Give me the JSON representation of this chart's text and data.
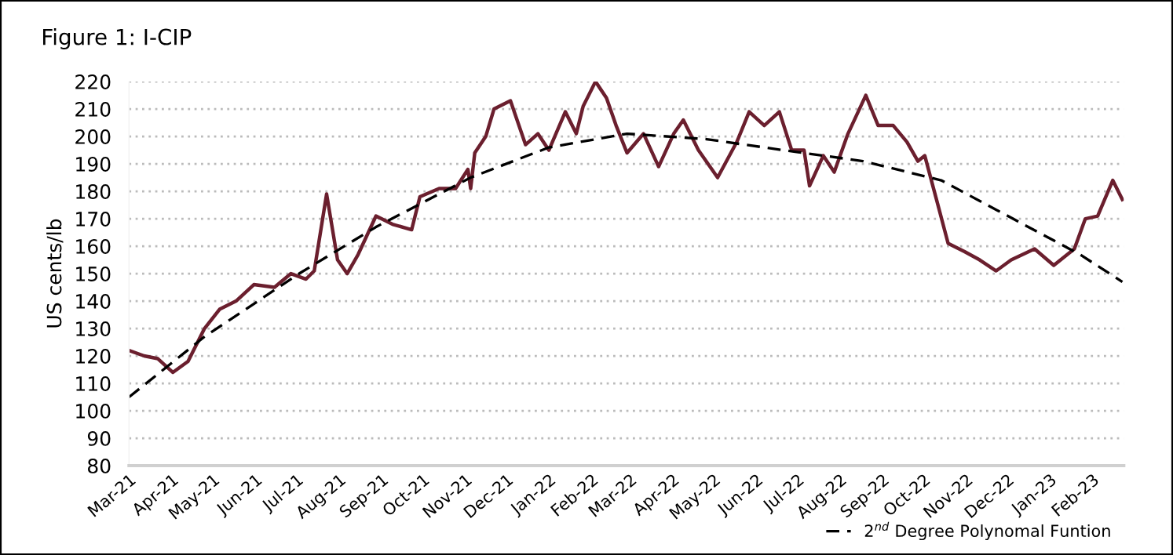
{
  "chart_data": {
    "type": "line",
    "title": "Figure 1: I-CIP",
    "ylabel": "US cents/lb",
    "xlim": [
      "2021-03-01",
      "2023-02-24"
    ],
    "xticks": [
      {
        "value": "2021-03-01",
        "label": "Mar-21"
      },
      {
        "value": "2021-04-01",
        "label": "Apr-21"
      },
      {
        "value": "2021-05-01",
        "label": "May-21"
      },
      {
        "value": "2021-06-01",
        "label": "Jun-21"
      },
      {
        "value": "2021-07-01",
        "label": "Jul-21"
      },
      {
        "value": "2021-08-01",
        "label": "Aug-21"
      },
      {
        "value": "2021-09-01",
        "label": "Sep-21"
      },
      {
        "value": "2021-10-01",
        "label": "Oct-21"
      },
      {
        "value": "2021-11-01",
        "label": "Nov-21"
      },
      {
        "value": "2021-12-01",
        "label": "Dec-21"
      },
      {
        "value": "2022-01-01",
        "label": "Jan-22"
      },
      {
        "value": "2022-02-01",
        "label": "Feb-22"
      },
      {
        "value": "2022-03-01",
        "label": "Mar-22"
      },
      {
        "value": "2022-04-01",
        "label": "Apr-22"
      },
      {
        "value": "2022-05-01",
        "label": "May-22"
      },
      {
        "value": "2022-06-01",
        "label": "Jun-22"
      },
      {
        "value": "2022-07-01",
        "label": "Jul-22"
      },
      {
        "value": "2022-08-01",
        "label": "Aug-22"
      },
      {
        "value": "2022-09-01",
        "label": "Sep-22"
      },
      {
        "value": "2022-10-01",
        "label": "Oct-22"
      },
      {
        "value": "2022-11-01",
        "label": "Nov-22"
      },
      {
        "value": "2022-12-01",
        "label": "Dec-22"
      },
      {
        "value": "2023-01-01",
        "label": "Jan-23"
      },
      {
        "value": "2023-02-01",
        "label": "Feb-23"
      }
    ],
    "ylim": [
      80,
      220
    ],
    "yticks": [
      80,
      90,
      100,
      110,
      120,
      130,
      140,
      150,
      160,
      170,
      180,
      190,
      200,
      210,
      220
    ],
    "grid": "y",
    "legend": "bottom",
    "marker": "none",
    "series": [
      {
        "color": "#6b1f2e",
        "line_style": "solid",
        "x": [
          "2021-03-01",
          "2021-03-12",
          "2021-03-22",
          "2021-04-02",
          "2021-04-13",
          "2021-04-25",
          "2021-05-06",
          "2021-05-18",
          "2021-05-31",
          "2021-06-15",
          "2021-06-27",
          "2021-07-08",
          "2021-07-14",
          "2021-07-23",
          "2021-07-31",
          "2021-08-07",
          "2021-08-15",
          "2021-08-28",
          "2021-09-09",
          "2021-09-23",
          "2021-09-29",
          "2021-10-13",
          "2021-10-25",
          "2021-11-03",
          "2021-11-05",
          "2021-11-08",
          "2021-11-16",
          "2021-11-22",
          "2021-12-04",
          "2021-12-15",
          "2021-12-24",
          "2022-01-01",
          "2022-01-13",
          "2022-01-21",
          "2022-01-26",
          "2022-02-04",
          "2022-02-12",
          "2022-02-19",
          "2022-02-27",
          "2022-03-11",
          "2022-03-22",
          "2022-04-02",
          "2022-04-09",
          "2022-04-20",
          "2022-05-04",
          "2022-05-18",
          "2022-05-27",
          "2022-06-07",
          "2022-06-18",
          "2022-06-27",
          "2022-07-06",
          "2022-07-10",
          "2022-07-20",
          "2022-07-28",
          "2022-08-07",
          "2022-08-20",
          "2022-08-29",
          "2022-09-09",
          "2022-09-19",
          "2022-09-27",
          "2022-10-02",
          "2022-10-10",
          "2022-10-19",
          "2022-10-31",
          "2022-11-11",
          "2022-11-23",
          "2022-12-04",
          "2022-12-21",
          "2023-01-04",
          "2023-01-19",
          "2023-01-27",
          "2023-02-05",
          "2023-02-16",
          "2023-02-23"
        ],
        "values": [
          122,
          120,
          119,
          114,
          118,
          130,
          137,
          140,
          146,
          145,
          150,
          148,
          151,
          179,
          155,
          150,
          157,
          171,
          168,
          166,
          178,
          181,
          181,
          188,
          181,
          194,
          200,
          210,
          213,
          197,
          201,
          195,
          209,
          201,
          211,
          220,
          214,
          204,
          194,
          201,
          189,
          201,
          206,
          195,
          185,
          198,
          209,
          204,
          209,
          195,
          195,
          182,
          193,
          187,
          201,
          215,
          204,
          204,
          198,
          191,
          193,
          178,
          161,
          158,
          155,
          151,
          155,
          159,
          153,
          159,
          170,
          171,
          184,
          177
        ]
      },
      {
        "name": "2$^{nd}$ Degree Polynomal Funtion",
        "color": "#000000",
        "line_style": "dashed",
        "x": [
          "2021-03-01",
          "2021-04-25",
          "2021-07-03",
          "2021-08-28",
          "2021-11-05",
          "2022-01-01",
          "2022-02-27",
          "2022-04-26",
          "2022-06-21",
          "2022-08-18",
          "2022-10-14",
          "2022-12-09",
          "2023-01-23",
          "2023-02-23"
        ],
        "values": [
          105,
          127,
          150,
          167,
          185,
          196,
          201,
          199,
          195,
          191,
          184,
          169,
          157,
          147
        ]
      }
    ]
  }
}
